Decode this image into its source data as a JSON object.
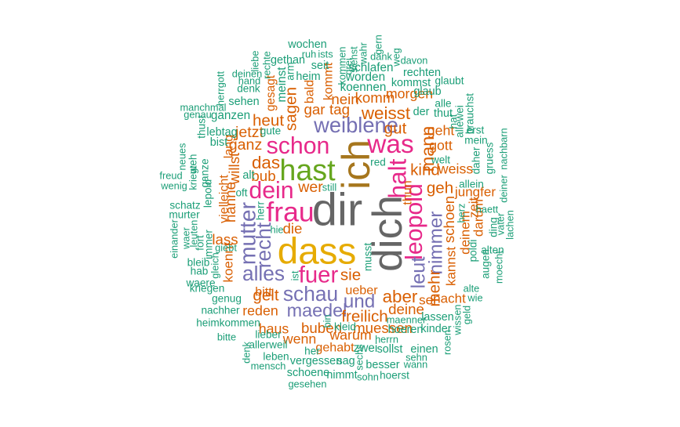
{
  "colors": {
    "gray": "#666666",
    "yellow": "#e6ab02",
    "brown": "#a6761d",
    "green": "#66a61e",
    "pink": "#e7298a",
    "purple": "#7570b3",
    "orange": "#d95f02",
    "teal": "#1b9e77"
  },
  "words": [
    {
      "text": "dir",
      "weight": 1.0,
      "color": "gray",
      "rot": 0
    },
    {
      "text": "dich",
      "weight": 0.92,
      "color": "gray",
      "rot": -90
    },
    {
      "text": "ich",
      "weight": 0.86,
      "color": "brown",
      "rot": -90
    },
    {
      "text": "dass",
      "weight": 0.82,
      "color": "yellow",
      "rot": 0
    },
    {
      "text": "hast",
      "weight": 0.64,
      "color": "green",
      "rot": 0
    },
    {
      "text": "frau",
      "weight": 0.6,
      "color": "pink",
      "rot": 0
    },
    {
      "text": "was",
      "weight": 0.56,
      "color": "pink",
      "rot": 0
    },
    {
      "text": "halt",
      "weight": 0.52,
      "color": "pink",
      "rot": -90
    },
    {
      "text": "dein",
      "weight": 0.5,
      "color": "pink",
      "rot": 0
    },
    {
      "text": "schon",
      "weight": 0.5,
      "color": "pink",
      "rot": 0
    },
    {
      "text": "leopold",
      "weight": 0.5,
      "color": "pink",
      "rot": -90
    },
    {
      "text": "fuer",
      "weight": 0.48,
      "color": "pink",
      "rot": 0
    },
    {
      "text": "mutter",
      "weight": 0.46,
      "color": "purple",
      "rot": -90
    },
    {
      "text": "weiblene",
      "weight": 0.44,
      "color": "purple",
      "rot": 0
    },
    {
      "text": "recht",
      "weight": 0.42,
      "color": "purple",
      "rot": -90
    },
    {
      "text": "alles",
      "weight": 0.42,
      "color": "purple",
      "rot": 0
    },
    {
      "text": "schau",
      "weight": 0.42,
      "color": "purple",
      "rot": 0
    },
    {
      "text": "leut",
      "weight": 0.4,
      "color": "purple",
      "rot": -90
    },
    {
      "text": "nimmer",
      "weight": 0.38,
      "color": "purple",
      "rot": -90
    },
    {
      "text": "und",
      "weight": 0.38,
      "color": "purple",
      "rot": 0
    },
    {
      "text": "maedel",
      "weight": 0.36,
      "color": "purple",
      "rot": 0
    },
    {
      "text": "mann",
      "weight": 0.36,
      "color": "orange",
      "rot": -90
    },
    {
      "text": "das",
      "weight": 0.34,
      "color": "orange",
      "rot": 0
    },
    {
      "text": "weisst",
      "weight": 0.34,
      "color": "orange",
      "rot": 0
    },
    {
      "text": "aber",
      "weight": 0.34,
      "color": "orange",
      "rot": 0
    },
    {
      "text": "sagen",
      "weight": 0.3,
      "color": "orange",
      "rot": -90
    },
    {
      "text": "heut",
      "weight": 0.3,
      "color": "orange",
      "rot": 0
    },
    {
      "text": "gut",
      "weight": 0.3,
      "color": "orange",
      "rot": 0
    },
    {
      "text": "kind",
      "weight": 0.3,
      "color": "orange",
      "rot": 0
    },
    {
      "text": "geh",
      "weight": 0.3,
      "color": "orange",
      "rot": 0
    },
    {
      "text": "sie",
      "weight": 0.3,
      "color": "orange",
      "rot": 0
    },
    {
      "text": "gelt",
      "weight": 0.3,
      "color": "orange",
      "rot": 0
    },
    {
      "text": "freilich",
      "weight": 0.3,
      "color": "orange",
      "rot": 0
    },
    {
      "text": "mehr",
      "weight": 0.3,
      "color": "orange",
      "rot": -90
    },
    {
      "text": "ganz",
      "weight": 0.28,
      "color": "orange",
      "rot": 0
    },
    {
      "text": "jetzt",
      "weight": 0.28,
      "color": "orange",
      "rot": 0
    },
    {
      "text": "wer",
      "weight": 0.28,
      "color": "orange",
      "rot": 0
    },
    {
      "text": "nein",
      "weight": 0.26,
      "color": "orange",
      "rot": 0
    },
    {
      "text": "komm",
      "weight": 0.26,
      "color": "orange",
      "rot": 0
    },
    {
      "text": "gar",
      "weight": 0.26,
      "color": "orange",
      "rot": 0
    },
    {
      "text": "tag",
      "weight": 0.26,
      "color": "orange",
      "rot": 0
    },
    {
      "text": "bub",
      "weight": 0.26,
      "color": "orange",
      "rot": 0
    },
    {
      "text": "die",
      "weight": 0.26,
      "color": "orange",
      "rot": 0
    },
    {
      "text": "willst",
      "weight": 0.26,
      "color": "orange",
      "rot": -90
    },
    {
      "text": "hanne",
      "weight": 0.26,
      "color": "orange",
      "rot": -90
    },
    {
      "text": "lass",
      "weight": 0.26,
      "color": "orange",
      "rot": 0
    },
    {
      "text": "schoen",
      "weight": 0.26,
      "color": "orange",
      "rot": -90
    },
    {
      "text": "deine",
      "weight": 0.26,
      "color": "orange",
      "rot": 0
    },
    {
      "text": "muessen",
      "weight": 0.26,
      "color": "orange",
      "rot": 0
    },
    {
      "text": "buben",
      "weight": 0.26,
      "color": "orange",
      "rot": 0
    },
    {
      "text": "reden",
      "weight": 0.24,
      "color": "orange",
      "rot": 0
    },
    {
      "text": "haus",
      "weight": 0.24,
      "color": "orange",
      "rot": 0
    },
    {
      "text": "wenn",
      "weight": 0.24,
      "color": "orange",
      "rot": 0
    },
    {
      "text": "warum",
      "weight": 0.24,
      "color": "orange",
      "rot": 0
    },
    {
      "text": "morgen",
      "weight": 0.24,
      "color": "orange",
      "rot": 0
    },
    {
      "text": "gott",
      "weight": 0.24,
      "color": "orange",
      "rot": 0
    },
    {
      "text": "geht",
      "weight": 0.24,
      "color": "orange",
      "rot": 0
    },
    {
      "text": "weiss",
      "weight": 0.24,
      "color": "orange",
      "rot": 0
    },
    {
      "text": "jungfer",
      "weight": 0.22,
      "color": "orange",
      "rot": 0
    },
    {
      "text": "darum",
      "weight": 0.22,
      "color": "orange",
      "rot": -90
    },
    {
      "text": "zeit",
      "weight": 0.22,
      "color": "orange",
      "rot": -90
    },
    {
      "text": "deinem",
      "weight": 0.22,
      "color": "orange",
      "rot": -90
    },
    {
      "text": "kannst",
      "weight": 0.22,
      "color": "orange",
      "rot": -90
    },
    {
      "text": "nacht",
      "weight": 0.22,
      "color": "orange",
      "rot": 0
    },
    {
      "text": "sei",
      "weight": 0.22,
      "color": "orange",
      "rot": 0
    },
    {
      "text": "koennt",
      "weight": 0.22,
      "color": "orange",
      "rot": -90
    },
    {
      "text": "bitt",
      "weight": 0.2,
      "color": "orange",
      "rot": 0
    },
    {
      "text": "ueber",
      "weight": 0.2,
      "color": "orange",
      "rot": 0
    },
    {
      "text": "gehabt",
      "weight": 0.2,
      "color": "orange",
      "rot": 0
    },
    {
      "text": "kommt",
      "weight": 0.2,
      "color": "orange",
      "rot": -90
    },
    {
      "text": "bald",
      "weight": 0.2,
      "color": "orange",
      "rot": -90
    },
    {
      "text": "thun",
      "weight": 0.2,
      "color": "orange",
      "rot": -90
    },
    {
      "text": "lang",
      "weight": 0.2,
      "color": "orange",
      "rot": -90
    },
    {
      "text": "vielleicht",
      "weight": 0.2,
      "color": "orange",
      "rot": -90
    },
    {
      "text": "meinst",
      "weight": 0.18,
      "color": "teal",
      "rot": -90
    },
    {
      "text": "gesagt",
      "weight": 0.18,
      "color": "orange",
      "rot": -90
    },
    {
      "text": "wochen",
      "weight": 0.16,
      "color": "teal",
      "rot": 0
    },
    {
      "text": "gethan",
      "weight": 0.16,
      "color": "teal",
      "rot": 0
    },
    {
      "text": "seit",
      "weight": 0.16,
      "color": "teal",
      "rot": 0
    },
    {
      "text": "worden",
      "weight": 0.18,
      "color": "teal",
      "rot": 0
    },
    {
      "text": "schlafen",
      "weight": 0.18,
      "color": "teal",
      "rot": 0
    },
    {
      "text": "koennen",
      "weight": 0.18,
      "color": "teal",
      "rot": 0
    },
    {
      "text": "heim",
      "weight": 0.16,
      "color": "teal",
      "rot": 0
    },
    {
      "text": "kommst",
      "weight": 0.16,
      "color": "teal",
      "rot": 0
    },
    {
      "text": "rechten",
      "weight": 0.16,
      "color": "teal",
      "rot": 0
    },
    {
      "text": "glaub",
      "weight": 0.16,
      "color": "teal",
      "rot": 0
    },
    {
      "text": "glaubt",
      "weight": 0.14,
      "color": "teal",
      "rot": 0
    },
    {
      "text": "sehen",
      "weight": 0.16,
      "color": "teal",
      "rot": 0
    },
    {
      "text": "ganzen",
      "weight": 0.18,
      "color": "teal",
      "rot": 0
    },
    {
      "text": "lebtag",
      "weight": 0.16,
      "color": "teal",
      "rot": 0
    },
    {
      "text": "bist",
      "weight": 0.16,
      "color": "teal",
      "rot": 0
    },
    {
      "text": "gute",
      "weight": 0.14,
      "color": "teal",
      "rot": 0
    },
    {
      "text": "alt",
      "weight": 0.16,
      "color": "teal",
      "rot": 0
    },
    {
      "text": "oft",
      "weight": 0.14,
      "color": "teal",
      "rot": 0
    },
    {
      "text": "herr",
      "weight": 0.14,
      "color": "teal",
      "rot": -90
    },
    {
      "text": "hie",
      "weight": 0.12,
      "color": "teal",
      "rot": 0
    },
    {
      "text": "still",
      "weight": 0.12,
      "color": "teal",
      "rot": 0
    },
    {
      "text": "red",
      "weight": 0.14,
      "color": "teal",
      "rot": 0
    },
    {
      "text": "der",
      "weight": 0.16,
      "color": "teal",
      "rot": 0
    },
    {
      "text": "thut",
      "weight": 0.16,
      "color": "teal",
      "rot": 0
    },
    {
      "text": "alle",
      "weight": 0.14,
      "color": "teal",
      "rot": 0
    },
    {
      "text": "allewei",
      "weight": 0.14,
      "color": "teal",
      "rot": -90
    },
    {
      "text": "hat",
      "weight": 0.14,
      "color": "teal",
      "rot": -90
    },
    {
      "text": "brauchst",
      "weight": 0.14,
      "color": "teal",
      "rot": -90
    },
    {
      "text": "erst",
      "weight": 0.14,
      "color": "teal",
      "rot": 0
    },
    {
      "text": "mein",
      "weight": 0.14,
      "color": "teal",
      "rot": 0
    },
    {
      "text": "gruess",
      "weight": 0.14,
      "color": "teal",
      "rot": -90
    },
    {
      "text": "daher",
      "weight": 0.14,
      "color": "teal",
      "rot": -90
    },
    {
      "text": "nachbarn",
      "weight": 0.12,
      "color": "teal",
      "rot": -90
    },
    {
      "text": "welt",
      "weight": 0.14,
      "color": "teal",
      "rot": 0
    },
    {
      "text": "allein",
      "weight": 0.14,
      "color": "teal",
      "rot": 0
    },
    {
      "text": "deiner",
      "weight": 0.12,
      "color": "teal",
      "rot": -90
    },
    {
      "text": "herz",
      "weight": 0.12,
      "color": "teal",
      "rot": -90
    },
    {
      "text": "haett",
      "weight": 0.12,
      "color": "teal",
      "rot": 0
    },
    {
      "text": "ding",
      "weight": 0.14,
      "color": "teal",
      "rot": -90
    },
    {
      "text": "vater",
      "weight": 0.12,
      "color": "teal",
      "rot": -90
    },
    {
      "text": "lachen",
      "weight": 0.12,
      "color": "teal",
      "rot": -90
    },
    {
      "text": "poldi",
      "weight": 0.14,
      "color": "teal",
      "rot": -90
    },
    {
      "text": "augen",
      "weight": 0.14,
      "color": "teal",
      "rot": -90
    },
    {
      "text": "alten",
      "weight": 0.14,
      "color": "teal",
      "rot": 0
    },
    {
      "text": "moecht",
      "weight": 0.12,
      "color": "teal",
      "rot": -90
    },
    {
      "text": "alte",
      "weight": 0.12,
      "color": "teal",
      "rot": 0
    },
    {
      "text": "wie",
      "weight": 0.12,
      "color": "teal",
      "rot": 0
    },
    {
      "text": "geld",
      "weight": 0.12,
      "color": "teal",
      "rot": -90
    },
    {
      "text": "wissen",
      "weight": 0.12,
      "color": "teal",
      "rot": -90
    },
    {
      "text": "lassen",
      "weight": 0.16,
      "color": "teal",
      "rot": 0
    },
    {
      "text": "kinder",
      "weight": 0.16,
      "color": "teal",
      "rot": 0
    },
    {
      "text": "rosen",
      "weight": 0.12,
      "color": "teal",
      "rot": -90
    },
    {
      "text": "maenner",
      "weight": 0.12,
      "color": "teal",
      "rot": 0
    },
    {
      "text": "kleid",
      "weight": 0.14,
      "color": "teal",
      "rot": 0
    },
    {
      "text": "bin",
      "weight": 0.12,
      "color": "teal",
      "rot": -90
    },
    {
      "text": "musst",
      "weight": 0.14,
      "color": "teal",
      "rot": -90
    },
    {
      "text": "ist",
      "weight": 0.12,
      "color": "teal",
      "rot": -90
    },
    {
      "text": "herrn",
      "weight": 0.12,
      "color": "teal",
      "rot": 0
    },
    {
      "text": "hoeren",
      "weight": 0.16,
      "color": "teal",
      "rot": 0
    },
    {
      "text": "zwei",
      "weight": 0.18,
      "color": "teal",
      "rot": 0
    },
    {
      "text": "sollst",
      "weight": 0.16,
      "color": "teal",
      "rot": 0
    },
    {
      "text": "einen",
      "weight": 0.16,
      "color": "teal",
      "rot": 0
    },
    {
      "text": "sehn",
      "weight": 0.12,
      "color": "teal",
      "rot": 0
    },
    {
      "text": "wann",
      "weight": 0.12,
      "color": "teal",
      "rot": 0
    },
    {
      "text": "besser",
      "weight": 0.16,
      "color": "teal",
      "rot": 0
    },
    {
      "text": "hoerst",
      "weight": 0.14,
      "color": "teal",
      "rot": 0
    },
    {
      "text": "sohn",
      "weight": 0.12,
      "color": "teal",
      "rot": 0
    },
    {
      "text": "sechs",
      "weight": 0.12,
      "color": "teal",
      "rot": -90
    },
    {
      "text": "vergessen",
      "weight": 0.16,
      "color": "teal",
      "rot": 0
    },
    {
      "text": "sag",
      "weight": 0.16,
      "color": "teal",
      "rot": 0
    },
    {
      "text": "her",
      "weight": 0.14,
      "color": "teal",
      "rot": 0
    },
    {
      "text": "schoene",
      "weight": 0.16,
      "color": "teal",
      "rot": 0
    },
    {
      "text": "nimmt",
      "weight": 0.16,
      "color": "teal",
      "rot": 0
    },
    {
      "text": "gesehen",
      "weight": 0.12,
      "color": "teal",
      "rot": 0
    },
    {
      "text": "leben",
      "weight": 0.14,
      "color": "teal",
      "rot": 0
    },
    {
      "text": "mensch",
      "weight": 0.12,
      "color": "teal",
      "rot": 0
    },
    {
      "text": "denk",
      "weight": 0.12,
      "color": "teal",
      "rot": -90
    },
    {
      "text": "allerweil",
      "weight": 0.14,
      "color": "teal",
      "rot": 0
    },
    {
      "text": "lieber",
      "weight": 0.14,
      "color": "teal",
      "rot": 0
    },
    {
      "text": "bitte",
      "weight": 0.12,
      "color": "teal",
      "rot": 0
    },
    {
      "text": "heimkommen",
      "weight": 0.14,
      "color": "teal",
      "rot": 0
    },
    {
      "text": "nachher",
      "weight": 0.14,
      "color": "teal",
      "rot": 0
    },
    {
      "text": "genug",
      "weight": 0.14,
      "color": "teal",
      "rot": 0
    },
    {
      "text": "kriegen",
      "weight": 0.14,
      "color": "teal",
      "rot": 0
    },
    {
      "text": "waere",
      "weight": 0.14,
      "color": "teal",
      "rot": 0
    },
    {
      "text": "gleich",
      "weight": 0.12,
      "color": "teal",
      "rot": -90
    },
    {
      "text": "hab",
      "weight": 0.14,
      "color": "teal",
      "rot": 0
    },
    {
      "text": "bleib",
      "weight": 0.14,
      "color": "teal",
      "rot": 0
    },
    {
      "text": "fort",
      "weight": 0.14,
      "color": "teal",
      "rot": -90
    },
    {
      "text": "giebt",
      "weight": 0.12,
      "color": "teal",
      "rot": 0
    },
    {
      "text": "immer",
      "weight": 0.14,
      "color": "teal",
      "rot": -90
    },
    {
      "text": "leuten",
      "weight": 0.12,
      "color": "teal",
      "rot": -90
    },
    {
      "text": "waer",
      "weight": 0.12,
      "color": "teal",
      "rot": -90
    },
    {
      "text": "einander",
      "weight": 0.12,
      "color": "teal",
      "rot": -90
    },
    {
      "text": "murter",
      "weight": 0.14,
      "color": "teal",
      "rot": 0
    },
    {
      "text": "schatz",
      "weight": 0.14,
      "color": "teal",
      "rot": 0
    },
    {
      "text": "lepold",
      "weight": 0.14,
      "color": "teal",
      "rot": -90
    },
    {
      "text": "ganze",
      "weight": 0.14,
      "color": "teal",
      "rot": -90
    },
    {
      "text": "kriegt",
      "weight": 0.12,
      "color": "teal",
      "rot": -90
    },
    {
      "text": "weh",
      "weight": 0.14,
      "color": "teal",
      "rot": -90
    },
    {
      "text": "neues",
      "weight": 0.12,
      "color": "teal",
      "rot": -90
    },
    {
      "text": "thust",
      "weight": 0.14,
      "color": "teal",
      "rot": -90
    },
    {
      "text": "freud",
      "weight": 0.12,
      "color": "teal",
      "rot": 0
    },
    {
      "text": "wenig",
      "weight": 0.12,
      "color": "teal",
      "rot": 0
    },
    {
      "text": "manchmal",
      "weight": 0.12,
      "color": "teal",
      "rot": 0
    },
    {
      "text": "genau",
      "weight": 0.12,
      "color": "teal",
      "rot": 0
    },
    {
      "text": "herrgott",
      "weight": 0.12,
      "color": "teal",
      "rot": -90
    },
    {
      "text": "deinen",
      "weight": 0.12,
      "color": "teal",
      "rot": 0
    },
    {
      "text": "hand",
      "weight": 0.12,
      "color": "teal",
      "rot": 0
    },
    {
      "text": "denk",
      "weight": 0.14,
      "color": "teal",
      "rot": 0
    },
    {
      "text": "liebe",
      "weight": 0.12,
      "color": "teal",
      "rot": -90
    },
    {
      "text": "rechte",
      "weight": 0.12,
      "color": "teal",
      "rot": -90
    },
    {
      "text": "arm",
      "weight": 0.14,
      "color": "teal",
      "rot": -90
    },
    {
      "text": "ruh",
      "weight": 0.12,
      "color": "teal",
      "rot": 0
    },
    {
      "text": "ists",
      "weight": 0.12,
      "color": "teal",
      "rot": 0
    },
    {
      "text": "kommen",
      "weight": 0.12,
      "color": "teal",
      "rot": -90
    },
    {
      "text": "drei",
      "weight": 0.12,
      "color": "teal",
      "rot": -90
    },
    {
      "text": "siehst",
      "weight": 0.12,
      "color": "teal",
      "rot": -90
    },
    {
      "text": "wahr",
      "weight": 0.12,
      "color": "teal",
      "rot": -90
    },
    {
      "text": "gern",
      "weight": 0.12,
      "color": "teal",
      "rot": -90
    },
    {
      "text": "dank",
      "weight": 0.12,
      "color": "teal",
      "rot": 0
    },
    {
      "text": "weg",
      "weight": 0.12,
      "color": "teal",
      "rot": -90
    },
    {
      "text": "davon",
      "weight": 0.12,
      "color": "teal",
      "rot": 0
    }
  ]
}
